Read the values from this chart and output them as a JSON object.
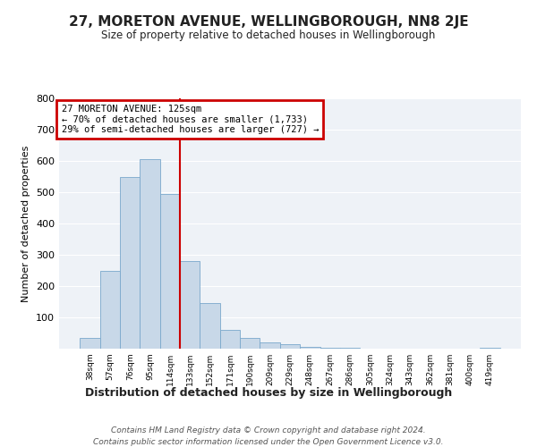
{
  "title": "27, MORETON AVENUE, WELLINGBOROUGH, NN8 2JE",
  "subtitle": "Size of property relative to detached houses in Wellingborough",
  "xlabel": "Distribution of detached houses by size in Wellingborough",
  "ylabel": "Number of detached properties",
  "bar_labels": [
    "38sqm",
    "57sqm",
    "76sqm",
    "95sqm",
    "114sqm",
    "133sqm",
    "152sqm",
    "171sqm",
    "190sqm",
    "209sqm",
    "229sqm",
    "248sqm",
    "267sqm",
    "286sqm",
    "305sqm",
    "324sqm",
    "343sqm",
    "362sqm",
    "381sqm",
    "400sqm",
    "419sqm"
  ],
  "bar_heights": [
    35,
    250,
    548,
    605,
    493,
    280,
    145,
    60,
    35,
    20,
    15,
    5,
    3,
    2,
    1,
    1,
    1,
    1,
    0,
    0,
    3
  ],
  "bar_color": "#c8d8e8",
  "bar_edge_color": "#7aa8cc",
  "vline_color": "#cc0000",
  "annotation_title": "27 MORETON AVENUE: 125sqm",
  "annotation_line1": "← 70% of detached houses are smaller (1,733)",
  "annotation_line2": "29% of semi-detached houses are larger (727) →",
  "annotation_box_color": "#cc0000",
  "ylim": [
    0,
    800
  ],
  "yticks": [
    0,
    100,
    200,
    300,
    400,
    500,
    600,
    700,
    800
  ],
  "footnote1": "Contains HM Land Registry data © Crown copyright and database right 2024.",
  "footnote2": "Contains public sector information licensed under the Open Government Licence v3.0.",
  "background_color": "#ffffff",
  "plot_bg_color": "#eef2f7",
  "grid_color": "#ffffff"
}
